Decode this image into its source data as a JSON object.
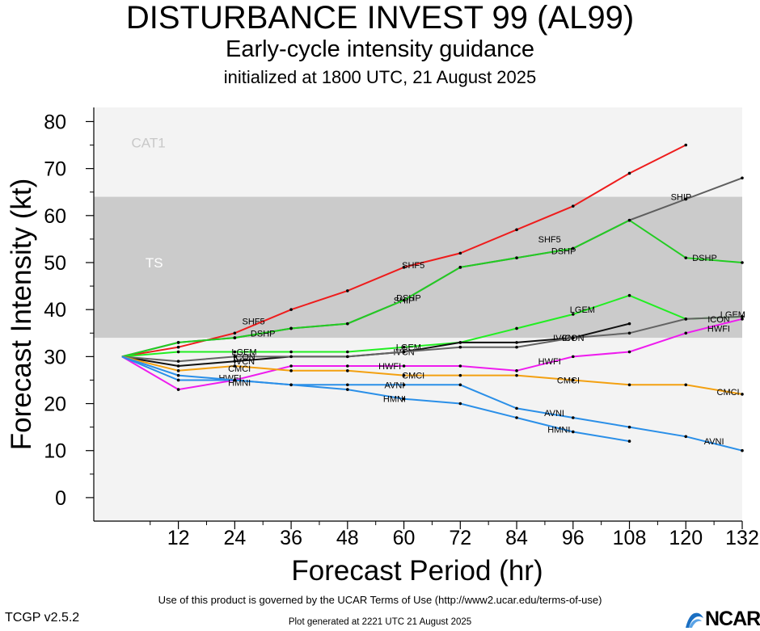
{
  "title": "DISTURBANCE INVEST 99 (AL99)",
  "subtitle": "Early-cycle intensity guidance",
  "initialized": "initialized at 1800 UTC, 21 August 2025",
  "footer": {
    "terms": "Use of this product is governed by the UCAR Terms of Use (http://www2.ucar.edu/terms-of-use)",
    "version": "TCGP v2.5.2",
    "generated": "Plot generated at 2221 UTC   21 August 2025",
    "logo_text": "NCAR"
  },
  "chart_data": {
    "type": "line",
    "xlabel": "Forecast Period (hr)",
    "ylabel": "Forecast Intensity (kt)",
    "xlim": [
      -6,
      132
    ],
    "ylim": [
      -5,
      83
    ],
    "xticks": [
      12,
      24,
      36,
      48,
      60,
      72,
      84,
      96,
      108,
      120,
      132
    ],
    "yticks": [
      0,
      10,
      20,
      30,
      40,
      50,
      60,
      70,
      80
    ],
    "bands": [
      {
        "label": "TS",
        "from": 34,
        "to": 64,
        "color": "#cbcbcb"
      },
      {
        "label": "CAT1",
        "from": 64,
        "to": 83,
        "color": "#f3f3f3"
      }
    ],
    "series": [
      {
        "name": "SHF5",
        "color": "#ee1c1c",
        "x": [
          0,
          12,
          24,
          36,
          48,
          60,
          72,
          84,
          96,
          108,
          120
        ],
        "y": [
          30,
          32,
          35,
          40,
          44,
          49,
          52,
          57,
          62,
          69,
          75
        ],
        "labels": [
          [
            28,
            37.5
          ],
          [
            62,
            49.5
          ],
          [
            91,
            55
          ]
        ]
      },
      {
        "name": "SHIP",
        "color": "#5e5e5e",
        "x": [
          0,
          12,
          24,
          36,
          48,
          60,
          72,
          84,
          96,
          108,
          120,
          132
        ],
        "y": [
          30,
          33,
          34,
          36,
          37,
          42,
          49,
          51,
          53,
          59,
          63.5,
          68
        ],
        "labels": [
          [
            60,
            42
          ],
          [
            119,
            64
          ]
        ]
      },
      {
        "name": "DSHP",
        "color": "#22cc22",
        "x": [
          0,
          12,
          24,
          36,
          48,
          60,
          72,
          84,
          96,
          108,
          120,
          132
        ],
        "y": [
          30,
          33,
          34,
          36,
          37,
          42,
          49,
          51,
          53,
          59,
          51,
          50
        ],
        "labels": [
          [
            30,
            35
          ],
          [
            61,
            42.5
          ],
          [
            94,
            52.5
          ],
          [
            124,
            51
          ]
        ]
      },
      {
        "name": "LGEM",
        "color": "#22ee22",
        "x": [
          0,
          12,
          24,
          36,
          48,
          60,
          72,
          84,
          96,
          108,
          120,
          132
        ],
        "y": [
          30,
          31,
          31,
          31,
          31,
          32,
          33,
          36,
          39,
          43,
          38,
          38.5
        ],
        "labels": [
          [
            26,
            31
          ],
          [
            61,
            32
          ],
          [
            98,
            40
          ],
          [
            130,
            39
          ]
        ]
      },
      {
        "name": "IVCN",
        "color": "#111111",
        "x": [
          0,
          12,
          24,
          36,
          48,
          60,
          72,
          84,
          96,
          108
        ],
        "y": [
          30,
          28,
          29,
          30,
          30,
          31,
          33,
          33,
          34,
          37
        ],
        "labels": [
          [
            26,
            29
          ],
          [
            60,
            31
          ],
          [
            94,
            34
          ]
        ]
      },
      {
        "name": "ICON",
        "color": "#636363",
        "x": [
          0,
          12,
          24,
          36,
          48,
          60,
          72,
          84,
          96,
          108,
          120,
          132
        ],
        "y": [
          30,
          29,
          30,
          30,
          30,
          31,
          32,
          32,
          34,
          35,
          38,
          38.5
        ],
        "labels": [
          [
            26,
            30
          ],
          [
            96,
            34
          ],
          [
            127,
            38
          ]
        ]
      },
      {
        "name": "HWFI",
        "color": "#ee1cee",
        "x": [
          0,
          12,
          24,
          36,
          48,
          60,
          72,
          84,
          96,
          108,
          120,
          132
        ],
        "y": [
          30,
          23,
          25,
          28,
          28,
          28,
          28,
          27,
          30,
          31,
          35,
          38
        ],
        "labels": [
          [
            23,
            25.5
          ],
          [
            57,
            28
          ],
          [
            91,
            29
          ],
          [
            127,
            36
          ]
        ]
      },
      {
        "name": "CMCI",
        "color": "#f3a010",
        "x": [
          0,
          12,
          24,
          36,
          48,
          60,
          72,
          84,
          96,
          108,
          120,
          132
        ],
        "y": [
          30,
          27,
          28,
          27,
          27,
          26,
          26,
          26,
          25,
          24,
          24,
          22
        ],
        "labels": [
          [
            25,
            27.5
          ],
          [
            62,
            26
          ],
          [
            95,
            25
          ],
          [
            129,
            22.5
          ]
        ]
      },
      {
        "name": "AVNI",
        "color": "#2a8fe8",
        "x": [
          0,
          12,
          24,
          36,
          48,
          60,
          72,
          84,
          96,
          108,
          120,
          132
        ],
        "y": [
          30,
          25,
          25,
          24,
          24,
          24,
          24,
          19,
          17,
          15,
          13,
          10
        ],
        "labels": [
          [
            58,
            24
          ],
          [
            92,
            18
          ],
          [
            126,
            12
          ]
        ]
      },
      {
        "name": "HMNI",
        "color": "#2a8fe8",
        "x": [
          0,
          12,
          24,
          36,
          48,
          60,
          72,
          84,
          96,
          108
        ],
        "y": [
          30,
          26,
          25,
          24,
          23,
          21,
          20,
          17,
          14,
          12
        ],
        "labels": [
          [
            25,
            24.5
          ],
          [
            58,
            21
          ],
          [
            93,
            14.5
          ]
        ]
      }
    ]
  }
}
